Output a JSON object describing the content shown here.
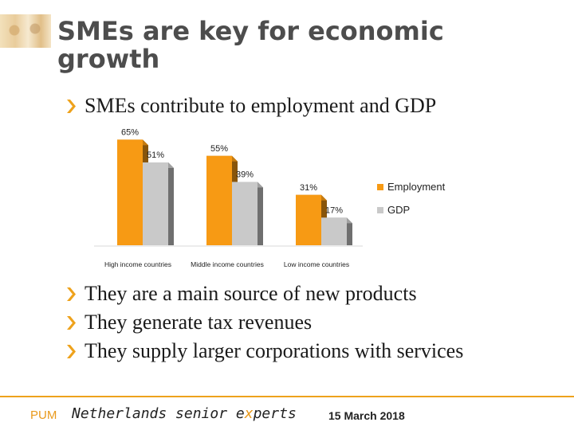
{
  "slide": {
    "title_line1": "SMEs are key for economic",
    "title_line2": "growth",
    "bullets": [
      "SMEs contribute to employment and GDP",
      "They are a main source of new products",
      "They generate tax revenues",
      "They supply larger corporations with services"
    ]
  },
  "footer": {
    "org": "PUM",
    "tagline_a": "Netherlands senior e",
    "tagline_x": "x",
    "tagline_b": "perts",
    "date": "15 March 2018"
  },
  "colors": {
    "accent": "#eea21c",
    "employment": "#f79a14",
    "gdp": "#c9c9c9",
    "title": "#4d4d4d"
  },
  "chart_data": {
    "type": "bar",
    "categories": [
      "High income countries",
      "Middle income countries",
      "Low income countries"
    ],
    "series": [
      {
        "name": "Employment",
        "values": [
          65,
          55,
          31
        ],
        "labels": [
          "65%",
          "55%",
          "31%"
        ],
        "color": "#f79a14"
      },
      {
        "name": "GDP",
        "values": [
          51,
          39,
          17
        ],
        "labels": [
          "51%",
          "39%",
          "17%"
        ],
        "color": "#c9c9c9"
      }
    ],
    "ylim": [
      0,
      70
    ],
    "legend": "right",
    "grid": false,
    "style": "3d"
  }
}
